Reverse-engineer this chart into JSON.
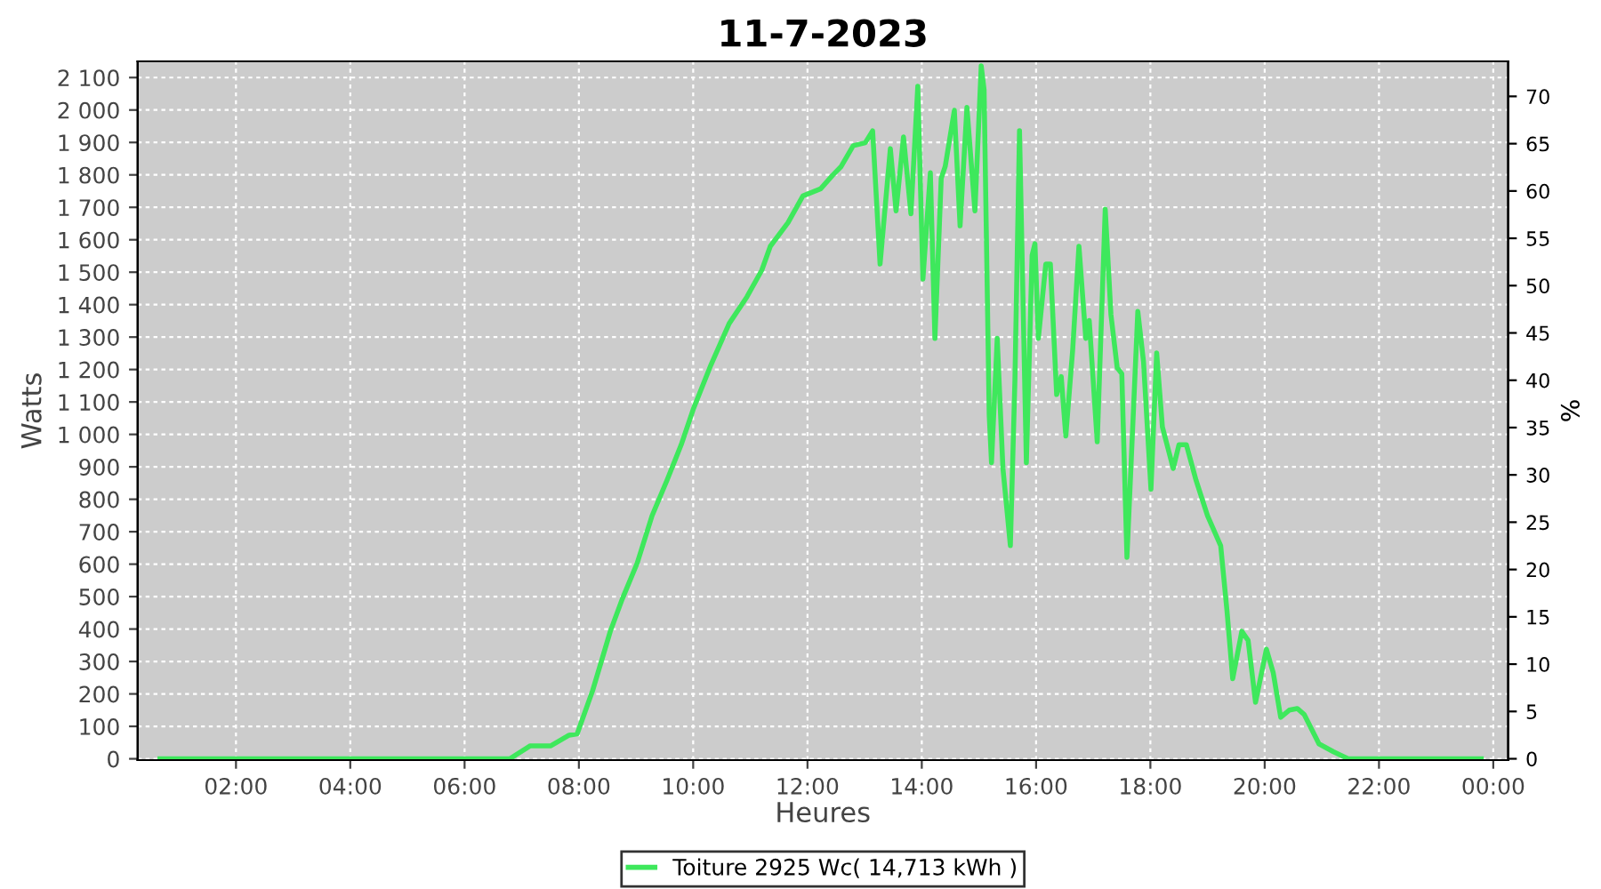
{
  "chart_data": {
    "type": "line",
    "title": "11-7-2023",
    "xlabel": "Heures",
    "ylabel": "Watts",
    "y2label": "%",
    "series": [
      {
        "name": "Toiture 2925 Wc( 14,713 kWh )",
        "color": "#3ee85c",
        "x": [
          0.67,
          6.79,
          7.15,
          7.51,
          7.83,
          7.97,
          8.24,
          8.55,
          8.76,
          9.02,
          9.28,
          9.54,
          9.79,
          10.0,
          10.31,
          10.63,
          10.94,
          11.2,
          11.35,
          11.66,
          11.92,
          12.23,
          12.44,
          12.59,
          12.8,
          13.01,
          13.14,
          13.27,
          13.45,
          13.55,
          13.68,
          13.81,
          13.93,
          14.02,
          14.15,
          14.23,
          14.34,
          14.41,
          14.57,
          14.67,
          14.79,
          14.93,
          15.04,
          15.09,
          15.18,
          15.22,
          15.32,
          15.42,
          15.55,
          15.63,
          15.71,
          15.83,
          15.93,
          15.98,
          16.04,
          16.17,
          16.25,
          16.36,
          16.44,
          16.52,
          16.64,
          16.75,
          16.87,
          16.93,
          17.07,
          17.21,
          17.31,
          17.42,
          17.5,
          17.59,
          17.78,
          17.88,
          18.01,
          18.11,
          18.21,
          18.4,
          18.5,
          18.63,
          18.8,
          19.0,
          19.23,
          19.34,
          19.44,
          19.6,
          19.71,
          19.84,
          20.03,
          20.15,
          20.28,
          20.43,
          20.57,
          20.69,
          20.95,
          21.2,
          21.46,
          23.79
        ],
        "values": [
          0,
          0,
          40,
          40,
          73,
          77,
          210,
          393,
          493,
          603,
          749,
          858,
          968,
          1077,
          1214,
          1342,
          1424,
          1506,
          1580,
          1653,
          1735,
          1757,
          1799,
          1826,
          1890,
          1899,
          1936,
          1525,
          1881,
          1689,
          1917,
          1680,
          2073,
          1479,
          1807,
          1296,
          1789,
          1826,
          1999,
          1643,
          2008,
          1689,
          2136,
          2063,
          1059,
          913,
          1296,
          895,
          657,
          1169,
          1936,
          913,
          1552,
          1588,
          1296,
          1525,
          1525,
          1123,
          1178,
          995,
          1260,
          1580,
          1296,
          1351,
          977,
          1694,
          1369,
          1205,
          1187,
          621,
          1379,
          1224,
          831,
          1251,
          1023,
          895,
          968,
          968,
          858,
          749,
          657,
          457,
          247,
          393,
          365,
          174,
          338,
          265,
          128,
          150,
          155,
          137,
          46,
          22,
          0,
          0
        ]
      }
    ],
    "xlim": [
      0.28,
      24.26
    ],
    "xticks": [
      {
        "value": 2,
        "label": "02:00"
      },
      {
        "value": 4,
        "label": "04:00"
      },
      {
        "value": 6,
        "label": "06:00"
      },
      {
        "value": 8,
        "label": "08:00"
      },
      {
        "value": 10,
        "label": "10:00"
      },
      {
        "value": 12,
        "label": "12:00"
      },
      {
        "value": 14,
        "label": "14:00"
      },
      {
        "value": 16,
        "label": "16:00"
      },
      {
        "value": 18,
        "label": "18:00"
      },
      {
        "value": 20,
        "label": "20:00"
      },
      {
        "value": 22,
        "label": "22:00"
      },
      {
        "value": 24,
        "label": "00:00"
      }
    ],
    "ylim": [
      -4,
      2150
    ],
    "yticks": [
      0,
      100,
      200,
      300,
      400,
      500,
      600,
      700,
      800,
      900,
      {
        "value": 1000,
        "label": "1 000"
      },
      {
        "value": 1100,
        "label": "1 100"
      },
      {
        "value": 1200,
        "label": "1 200"
      },
      {
        "value": 1300,
        "label": "1 300"
      },
      {
        "value": 1400,
        "label": "1 400"
      },
      {
        "value": 1500,
        "label": "1 500"
      },
      {
        "value": 1600,
        "label": "1 600"
      },
      {
        "value": 1700,
        "label": "1 700"
      },
      {
        "value": 1800,
        "label": "1 800"
      },
      {
        "value": 1900,
        "label": "1 900"
      },
      {
        "value": 2000,
        "label": "2 000"
      },
      {
        "value": 2100,
        "label": "2 100"
      }
    ],
    "y2lim": [
      -0.14,
      73.7
    ],
    "y2ticks": [
      0,
      5,
      10,
      15,
      20,
      25,
      30,
      35,
      40,
      45,
      50,
      55,
      60,
      65,
      70
    ],
    "grid": true,
    "legend": "bottom",
    "marker": "none",
    "line_style": "solid"
  }
}
